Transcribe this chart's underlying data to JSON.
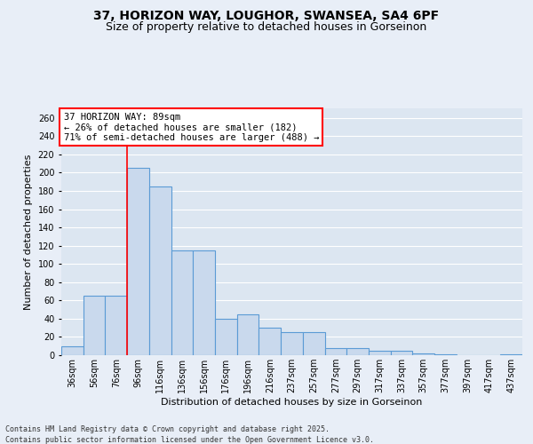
{
  "title_line1": "37, HORIZON WAY, LOUGHOR, SWANSEA, SA4 6PF",
  "title_line2": "Size of property relative to detached houses in Gorseinon",
  "xlabel": "Distribution of detached houses by size in Gorseinon",
  "ylabel": "Number of detached properties",
  "categories": [
    "36sqm",
    "56sqm",
    "76sqm",
    "96sqm",
    "116sqm",
    "136sqm",
    "156sqm",
    "176sqm",
    "196sqm",
    "216sqm",
    "237sqm",
    "257sqm",
    "277sqm",
    "297sqm",
    "317sqm",
    "337sqm",
    "357sqm",
    "377sqm",
    "397sqm",
    "417sqm",
    "437sqm"
  ],
  "values": [
    10,
    65,
    65,
    205,
    185,
    115,
    115,
    40,
    45,
    30,
    25,
    25,
    8,
    8,
    5,
    5,
    2,
    1,
    0,
    0,
    1
  ],
  "bar_color": "#c9d9ed",
  "bar_edge_color": "#5b9bd5",
  "bar_edge_width": 0.8,
  "annotation_text_line1": "37 HORIZON WAY: 89sqm",
  "annotation_text_line2": "← 26% of detached houses are smaller (182)",
  "annotation_text_line3": "71% of semi-detached houses are larger (488) →",
  "red_line_x": 2.5,
  "background_color": "#e8eef7",
  "plot_background_color": "#dce6f1",
  "grid_color": "#ffffff",
  "ylim": [
    0,
    270
  ],
  "yticks": [
    0,
    20,
    40,
    60,
    80,
    100,
    120,
    140,
    160,
    180,
    200,
    220,
    240,
    260
  ],
  "footer_line1": "Contains HM Land Registry data © Crown copyright and database right 2025.",
  "footer_line2": "Contains public sector information licensed under the Open Government Licence v3.0.",
  "title_fontsize": 10,
  "subtitle_fontsize": 9,
  "axis_label_fontsize": 8,
  "tick_fontsize": 7,
  "annotation_fontsize": 7.5,
  "footer_fontsize": 6
}
